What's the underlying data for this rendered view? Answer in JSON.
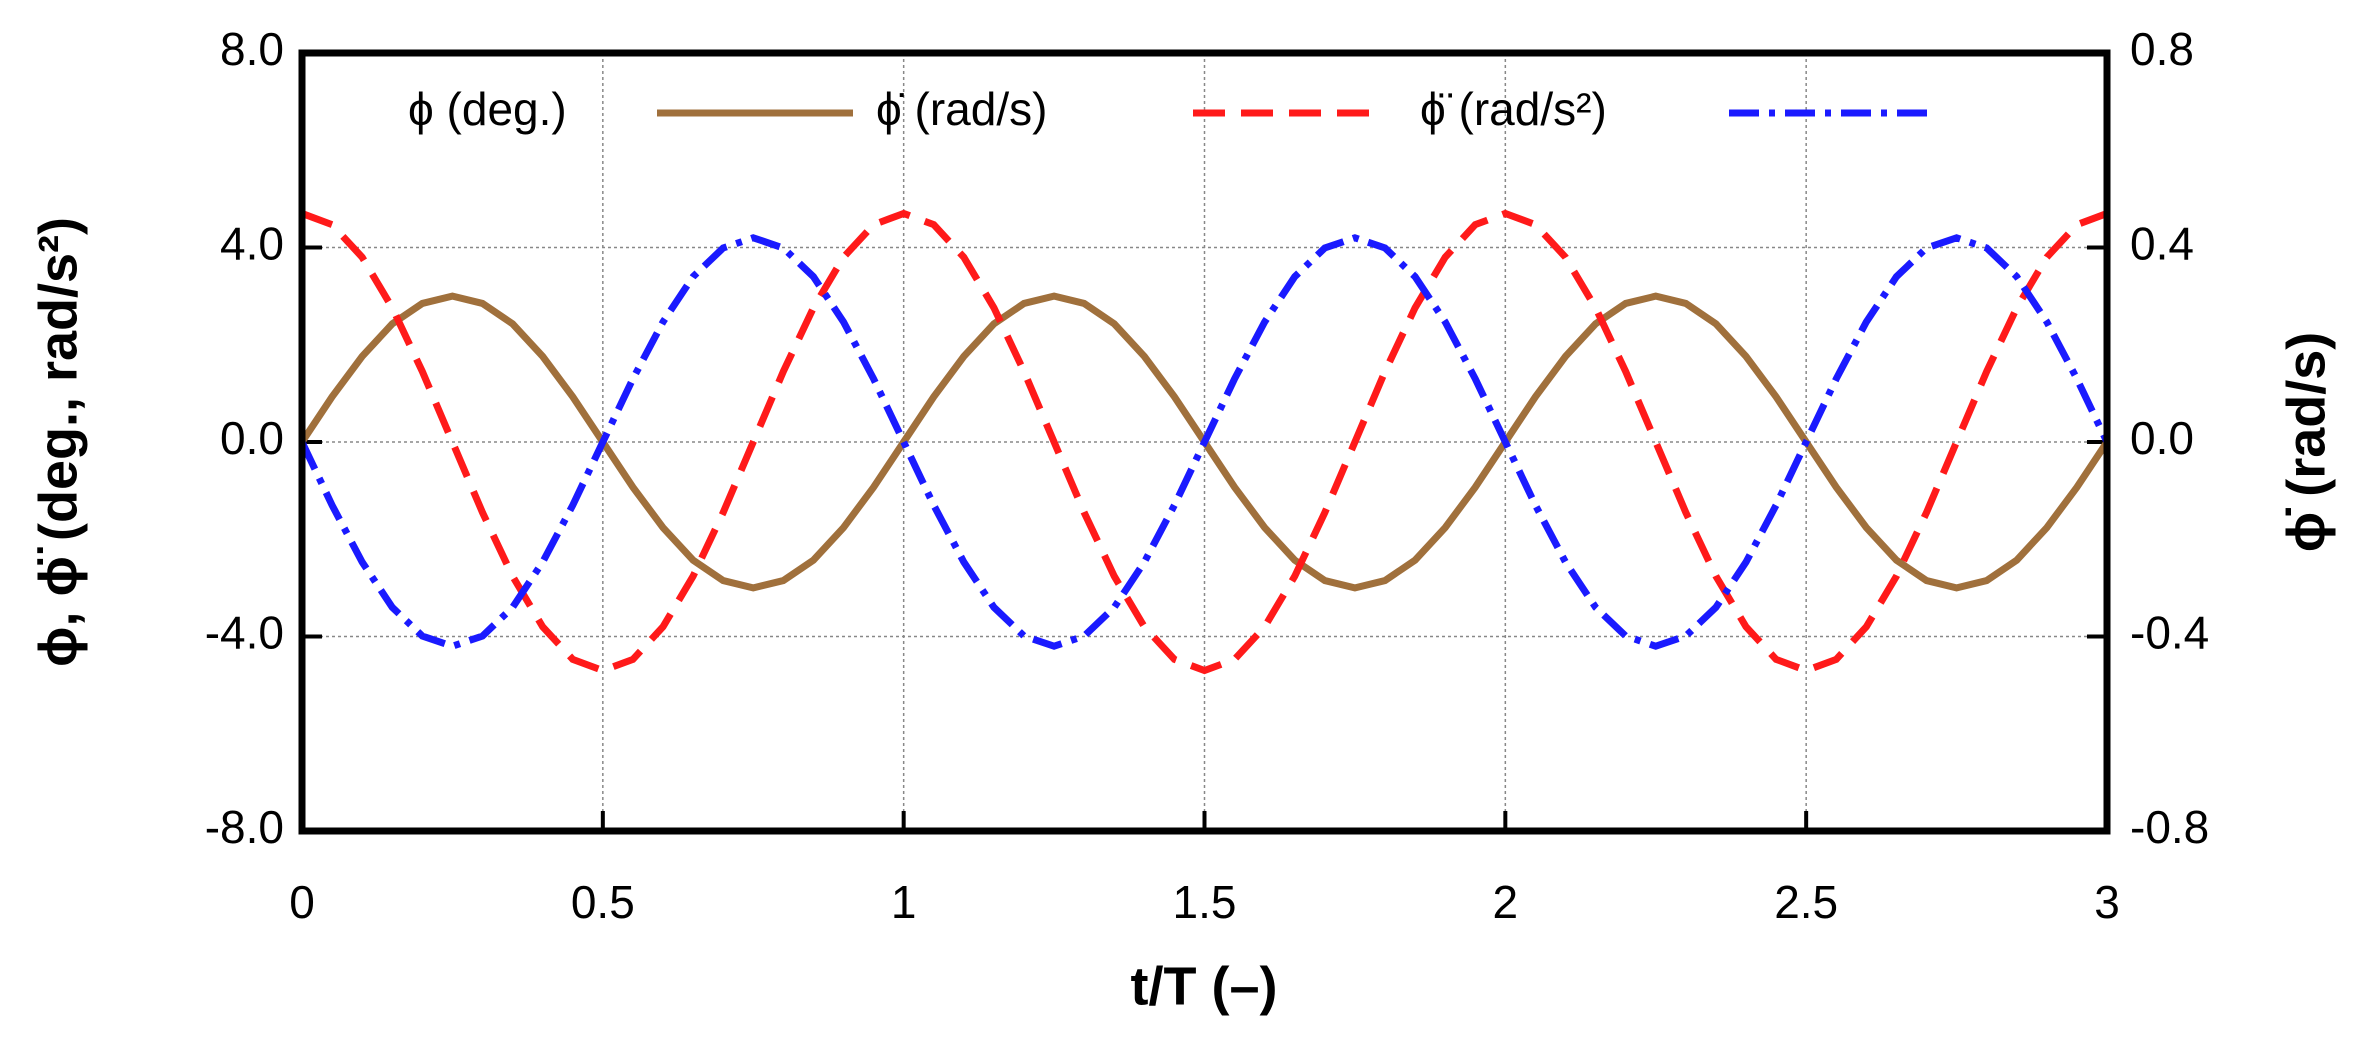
{
  "chart_data": {
    "type": "line",
    "xlabel": "t/T (–)",
    "ylabel": "ϕ, ϕ̈ (deg., rad/s²)",
    "y2label": "ϕ̇ (rad/s)",
    "x": [
      0,
      0.05,
      0.1,
      0.15,
      0.2,
      0.25,
      0.3,
      0.35,
      0.4,
      0.45,
      0.5,
      0.55,
      0.6,
      0.65,
      0.7,
      0.75,
      0.8,
      0.85,
      0.9,
      0.95,
      1,
      1.05,
      1.1,
      1.15,
      1.2,
      1.25,
      1.3,
      1.35,
      1.4,
      1.45,
      1.5,
      1.55,
      1.6,
      1.65,
      1.7,
      1.75,
      1.8,
      1.85,
      1.9,
      1.95,
      2,
      2.05,
      2.1,
      2.15,
      2.2,
      2.25,
      2.3,
      2.35,
      2.4,
      2.45,
      2.5,
      2.55,
      2.6,
      2.65,
      2.7,
      2.75,
      2.8,
      2.85,
      2.9,
      2.95,
      3
    ],
    "series": [
      {
        "name": "ϕ (deg.)",
        "color": "#a0703c",
        "dash": "none",
        "values": [
          0,
          0.93,
          1.76,
          2.43,
          2.85,
          3,
          2.85,
          2.43,
          1.76,
          0.93,
          0,
          -0.93,
          -1.76,
          -2.43,
          -2.85,
          -3,
          -2.85,
          -2.43,
          -1.76,
          -0.93,
          0,
          0.93,
          1.76,
          2.43,
          2.85,
          3,
          2.85,
          2.43,
          1.76,
          0.93,
          0,
          -0.93,
          -1.76,
          -2.43,
          -2.85,
          -3,
          -2.85,
          -2.43,
          -1.76,
          -0.93,
          0,
          0.93,
          1.76,
          2.43,
          2.85,
          3,
          2.85,
          2.43,
          1.76,
          0.93,
          0,
          -0.93,
          -1.76,
          -2.43,
          -2.85,
          -3,
          -2.85,
          -2.43,
          -1.76,
          -0.93,
          0
        ]
      },
      {
        "name": "ϕ̇ (rad/s)",
        "color": "#ff1a1a",
        "dash": "32,16",
        "axis": "y2",
        "values": [
          0.47,
          0.447,
          0.38,
          0.276,
          0.145,
          0,
          -0.145,
          -0.276,
          -0.38,
          -0.447,
          -0.47,
          -0.447,
          -0.38,
          -0.276,
          -0.145,
          0,
          0.145,
          0.276,
          0.38,
          0.447,
          0.47,
          0.447,
          0.38,
          0.276,
          0.145,
          0,
          -0.145,
          -0.276,
          -0.38,
          -0.447,
          -0.47,
          -0.447,
          -0.38,
          -0.276,
          -0.145,
          0,
          0.145,
          0.276,
          0.38,
          0.447,
          0.47,
          0.447,
          0.38,
          0.276,
          0.145,
          0,
          -0.145,
          -0.276,
          -0.38,
          -0.447,
          -0.47,
          -0.447,
          -0.38,
          -0.276,
          -0.145,
          0,
          0.145,
          0.276,
          0.38,
          0.447,
          0.47
        ]
      },
      {
        "name": "ϕ̈ (rad/s²)",
        "color": "#1a1aff",
        "dash": "30,10,6,10",
        "values": [
          0,
          -1.3,
          -2.47,
          -3.4,
          -3.99,
          -4.2,
          -3.99,
          -3.4,
          -2.47,
          -1.3,
          0,
          1.3,
          2.47,
          3.4,
          3.99,
          4.2,
          3.99,
          3.4,
          2.47,
          1.3,
          0,
          -1.3,
          -2.47,
          -3.4,
          -3.99,
          -4.2,
          -3.99,
          -3.4,
          -2.47,
          -1.3,
          0,
          1.3,
          2.47,
          3.4,
          3.99,
          4.2,
          3.99,
          3.4,
          2.47,
          1.3,
          0,
          -1.3,
          -2.47,
          -3.4,
          -3.99,
          -4.2,
          -3.99,
          -3.4,
          -2.47,
          -1.3,
          0,
          1.3,
          2.47,
          3.4,
          3.99,
          4.2,
          3.99,
          3.4,
          2.47,
          1.3,
          0
        ]
      }
    ],
    "xlim": [
      0,
      3
    ],
    "xticks": [
      0,
      0.5,
      1,
      1.5,
      2,
      2.5,
      3
    ],
    "ylim": [
      -8,
      8
    ],
    "yticks": [
      {
        "value": -8,
        "label": "-8.0"
      },
      {
        "value": -4,
        "label": "-4.0"
      },
      {
        "value": 0,
        "label": "0.0"
      },
      {
        "value": 4,
        "label": "4.0"
      },
      {
        "value": 8,
        "label": "8.0"
      }
    ],
    "y2lim": [
      -0.8,
      0.8
    ],
    "y2ticks": [
      -0.8,
      -0.4,
      {
        "value": 0,
        "label": "0.0"
      },
      0.4,
      0.8
    ],
    "grid": true,
    "legend": "top"
  }
}
